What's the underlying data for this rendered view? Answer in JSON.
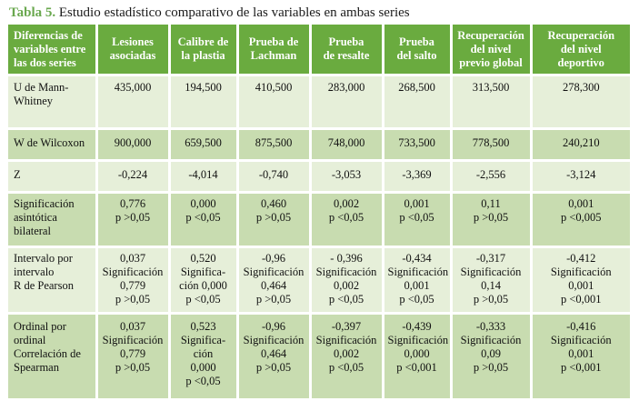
{
  "caption": {
    "label": "Tabla 5.",
    "text": " Estudio estadístico comparativo de las variables en ambas series"
  },
  "table": {
    "headers": [
      "Diferencias de\nvariables entre\nlas dos series",
      "Lesiones\nasociadas",
      "Calibre de\nla plastia",
      "Prueba de\nLachman",
      "Prueba\nde resalte",
      "Prueba\ndel salto",
      "Recuperación\ndel nivel\nprevio global",
      "Recuperación\ndel nivel\ndeportivo"
    ],
    "rows": [
      [
        "U de Mann-\nWhitney",
        "435,000",
        "194,500",
        "410,500",
        "283,000",
        "268,500",
        "313,500",
        "278,300"
      ],
      [
        "W de Wilcoxon",
        "900,000",
        "659,500",
        "875,500",
        "748,000",
        "733,500",
        "778,500",
        "240,210"
      ],
      [
        "Z",
        "-0,224",
        "-4,014",
        "-0,740",
        "-3,053",
        "-3,369",
        "-2,556",
        "-3,124"
      ],
      [
        "Significación\nasintótica\nbilateral",
        "0,776\np >0,05",
        "0,000\np <0,05",
        "0,460\np >0,05",
        "0,002\np <0,05",
        "0,001\np <0,05",
        "0,11\np >0,05",
        "0,001\np <0,005"
      ],
      [
        "Intervalo por\nintervalo\nR de Pearson",
        "0,037\nSignificación\n0,779\np >0,05",
        "0,520\nSignifica-\nción  0,000\np <0,05",
        "-0,96\nSignificación\n0,464\np >0,05",
        "- 0,396\nSignificación\n0,002\np <0,05",
        "-0,434\nSignificación\n0,001\np <0,05",
        "-0,317\nSignificación\n0,14\np >0,05",
        "-0,412\nSignificación\n0,001\np <0,001"
      ],
      [
        "Ordinal por\nordinal\nCorrelación de\nSpearman",
        "0,037\nSignificación\n0,779\np >0,05",
        "0,523\nSignifica-\nción\n0,000\np <0,05",
        "-0,96\nSignificación\n0,464\np >0,05",
        "-0,397\nSignificación\n0,002\np <0,05",
        "-0,439\nSignificación\n0,000\np <0,001",
        "-0,333\nSignificación\n0,09\np >0,05",
        "-0,416\nSignificación\n0,001\np <0,001"
      ]
    ]
  }
}
